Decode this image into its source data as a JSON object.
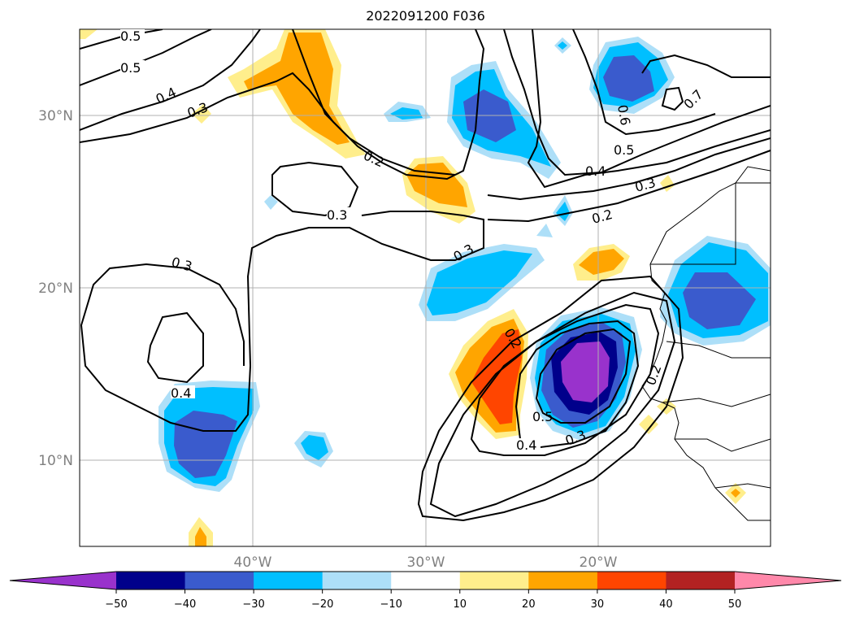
{
  "title": "2022091200 F036",
  "lat_labels": [
    "30°N",
    "20°N",
    "10°N"
  ],
  "lon_labels": [
    "40°W",
    "30°W",
    "20°W"
  ],
  "contour_labels": [
    "0.5",
    "0.5",
    "0.4",
    "0.3",
    "0.2",
    "0.3",
    "0.3",
    "0.3",
    "0.4",
    "0.5",
    "0.4",
    "0.3",
    "0.2",
    "0.4",
    "0.3",
    "0.2",
    "0.5",
    "0.6",
    "0.7",
    "0.2"
  ],
  "colorbar": {
    "ticks": [
      "−50",
      "−40",
      "−30",
      "−20",
      "−10",
      "10",
      "20",
      "30",
      "40",
      "50"
    ],
    "colors": [
      "#9932CC",
      "#00008B",
      "#3A5BCD",
      "#00BFFF",
      "#ADDFF8",
      "#FFFFFF",
      "#FFEE8C",
      "#FFA500",
      "#FF4500",
      "#B22222",
      "#FF88AA"
    ]
  }
}
